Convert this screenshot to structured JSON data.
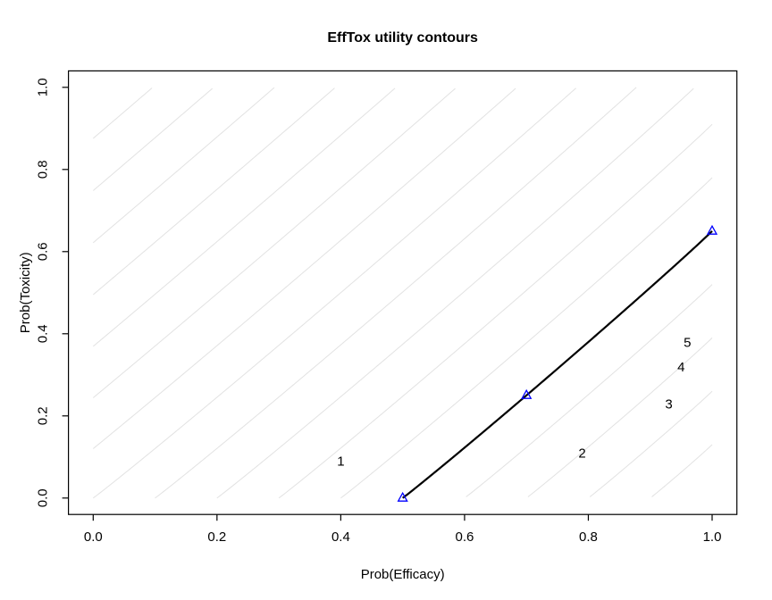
{
  "chart_data": {
    "type": "line",
    "title": "EffTox utility contours",
    "xlabel": "Prob(Efficacy)",
    "ylabel": "Prob(Toxicity)",
    "xlim": [
      0,
      1
    ],
    "ylim": [
      0,
      1
    ],
    "axis_expansion": 0.04,
    "grid": false,
    "legend": "none",
    "x_ticks": [
      "0.0",
      "0.2",
      "0.4",
      "0.6",
      "0.8",
      "1.0"
    ],
    "y_ticks": [
      "0.0",
      "0.2",
      "0.4",
      "0.6",
      "0.8",
      "1.0"
    ],
    "contours": {
      "description": "Iso-utility contours of the EffTox trade-off function; neutral contour (utility 0) drawn in black through the three hinge points",
      "eff0": 0.5,
      "tox1": 0.65,
      "hinge": [
        0.7,
        0.25
      ],
      "utility_values": [
        -2.4,
        -2.2,
        -2.0,
        -1.8,
        -1.6,
        -1.4,
        -1.2,
        -1.0,
        -0.8,
        -0.6,
        -0.4,
        -0.2,
        0.2,
        0.4,
        0.6,
        0.8
      ],
      "neutral_utility": 0,
      "color": "#e2e2e2",
      "neutral_color": "#000000"
    },
    "hinge_points": {
      "marker": "open-triangle",
      "color": "#0000ff",
      "points": [
        {
          "x": 0.5,
          "y": 0.0
        },
        {
          "x": 0.7,
          "y": 0.25
        },
        {
          "x": 1.0,
          "y": 0.65
        }
      ]
    },
    "dose_labels": {
      "color": "#ff0000",
      "items": [
        {
          "label": "1",
          "x": 0.4,
          "y": 0.09
        },
        {
          "label": "2",
          "x": 0.79,
          "y": 0.11
        },
        {
          "label": "3",
          "x": 0.93,
          "y": 0.23
        },
        {
          "label": "4",
          "x": 0.95,
          "y": 0.32
        },
        {
          "label": "5",
          "x": 0.96,
          "y": 0.38
        }
      ]
    },
    "axis_color": "#000000"
  }
}
